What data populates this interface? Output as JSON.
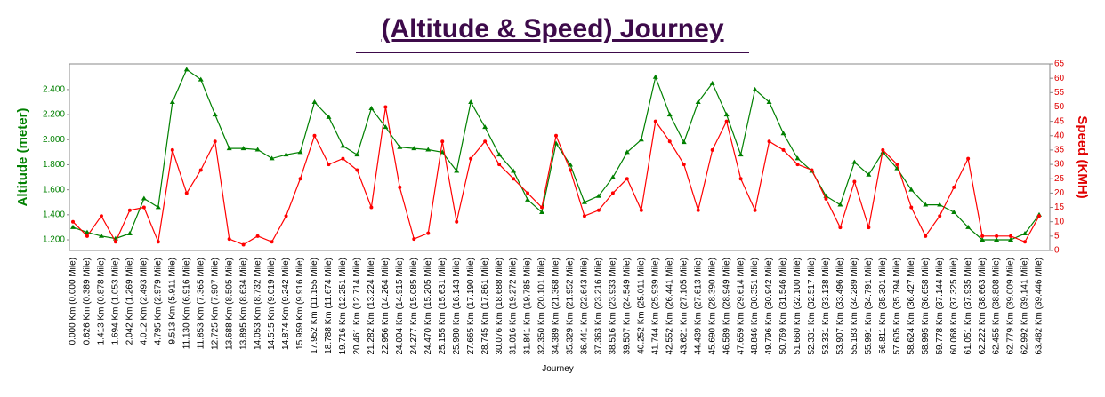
{
  "chart_data": {
    "type": "line",
    "title": "(Altitude & Speed) Journey",
    "x_label": "Journey",
    "y_label": "Altitude (meter)",
    "y2_label": "Speed (KMH)",
    "categories": [
      "0.000 Km (0.000 Mile)",
      "0.626 Km (0.389 Mile)",
      "1.413 Km (0.878 Mile)",
      "1.694 Km (1.053 Mile)",
      "2.042 Km (1.269 Mile)",
      "4.012 Km (2.493 Mile)",
      "4.795 Km (2.979 Mile)",
      "9.513 Km (5.911 Mile)",
      "11.130 Km (6.916 Mile)",
      "11.853 Km (7.365 Mile)",
      "12.725 Km (7.907 Mile)",
      "13.688 Km (8.505 Mile)",
      "13.895 Km (8.634 Mile)",
      "14.053 Km (8.732 Mile)",
      "14.515 Km (9.019 Mile)",
      "14.874 Km (9.242 Mile)",
      "15.959 Km (9.916 Mile)",
      "17.952 Km (11.155 Mile)",
      "18.788 Km (11.674 Mile)",
      "19.716 Km (12.251 Mile)",
      "20.461 Km (12.714 Mile)",
      "21.282 Km (13.224 Mile)",
      "22.956 Km (14.264 Mile)",
      "24.004 Km (14.915 Mile)",
      "24.277 Km (15.085 Mile)",
      "24.470 Km (15.205 Mile)",
      "25.155 Km (15.631 Mile)",
      "25.980 Km (16.143 Mile)",
      "27.665 Km (17.190 Mile)",
      "28.745 Km (17.861 Mile)",
      "30.076 Km (18.688 Mile)",
      "31.016 Km (19.272 Mile)",
      "31.841 Km (19.785 Mile)",
      "32.350 Km (20.101 Mile)",
      "34.389 Km (21.368 Mile)",
      "35.329 Km (21.952 Mile)",
      "36.441 Km (22.643 Mile)",
      "37.363 Km (23.216 Mile)",
      "38.516 Km (23.933 Mile)",
      "39.507 Km (24.549 Mile)",
      "40.252 Km (25.011 Mile)",
      "41.744 Km (25.939 Mile)",
      "42.552 Km (26.441 Mile)",
      "43.621 Km (27.105 Mile)",
      "44.439 Km (27.613 Mile)",
      "45.690 Km (28.390 Mile)",
      "46.589 Km (28.949 Mile)",
      "47.659 Km (29.614 Mile)",
      "48.846 Km (30.351 Mile)",
      "49.796 Km (30.942 Mile)",
      "50.769 Km (31.546 Mile)",
      "51.660 Km (32.100 Mile)",
      "52.331 Km (32.517 Mile)",
      "53.331 Km (33.138 Mile)",
      "53.907 Km (33.496 Mile)",
      "55.183 Km (34.289 Mile)",
      "55.991 Km (34.791 Mile)",
      "56.811 Km (35.301 Mile)",
      "57.605 Km (35.794 Mile)",
      "58.624 Km (36.427 Mile)",
      "58.995 Km (36.658 Mile)",
      "59.778 Km (37.144 Mile)",
      "60.068 Km (37.325 Mile)",
      "61.051 Km (37.935 Mile)",
      "62.222 Km (38.663 Mile)",
      "62.455 Km (38.808 Mile)",
      "62.779 Km (39.009 Mile)",
      "62.992 Km (39.141 Mile)",
      "63.482 Km (39.446 Mile)"
    ],
    "series": [
      {
        "name": "Altitude (meter)",
        "color": "#008000",
        "axis": "y",
        "values": [
          1300,
          1260,
          1230,
          1210,
          1250,
          1530,
          1460,
          2300,
          2560,
          2480,
          2200,
          1930,
          1930,
          1920,
          1850,
          1880,
          1900,
          2300,
          2180,
          1950,
          1880,
          2250,
          2100,
          1940,
          1930,
          1920,
          1900,
          1750,
          2300,
          2100,
          1880,
          1750,
          1520,
          1420,
          1970,
          1800,
          1500,
          1550,
          1700,
          1900,
          2000,
          2500,
          2200,
          1980,
          2300,
          2450,
          2200,
          1880,
          2400,
          2300,
          2050,
          1850,
          1750,
          1550,
          1480,
          1820,
          1720,
          1900,
          1770,
          1600,
          1480,
          1480,
          1420,
          1300,
          1200,
          1200,
          1200,
          1250,
          1400
        ]
      },
      {
        "name": "Speed (KMH)",
        "color": "#ff0000",
        "axis": "y2",
        "values": [
          10,
          5,
          12,
          3,
          14,
          15,
          3,
          35,
          20,
          28,
          38,
          4,
          2,
          5,
          3,
          12,
          25,
          40,
          30,
          32,
          28,
          15,
          50,
          22,
          4,
          6,
          38,
          10,
          32,
          38,
          30,
          25,
          20,
          15,
          40,
          28,
          12,
          14,
          20,
          25,
          14,
          45,
          38,
          30,
          14,
          35,
          45,
          25,
          14,
          38,
          35,
          30,
          28,
          18,
          8,
          24,
          8,
          35,
          30,
          15,
          5,
          12,
          22,
          32,
          5,
          5,
          5,
          3,
          12
        ]
      }
    ],
    "ylim": [
      1115,
      2605
    ],
    "yticks": [
      {
        "value": 1200,
        "label": "1.200"
      },
      {
        "value": 1400,
        "label": "1.400"
      },
      {
        "value": 1600,
        "label": "1.600"
      },
      {
        "value": 1800,
        "label": "1.800"
      },
      {
        "value": 2000,
        "label": "2.000"
      },
      {
        "value": 2200,
        "label": "2.200"
      },
      {
        "value": 2400,
        "label": "2.400"
      }
    ],
    "y2lim": [
      0,
      65
    ],
    "y2ticks": [
      0,
      5,
      10,
      15,
      20,
      25,
      30,
      35,
      40,
      45,
      50,
      55,
      60,
      65
    ],
    "grid": false
  }
}
